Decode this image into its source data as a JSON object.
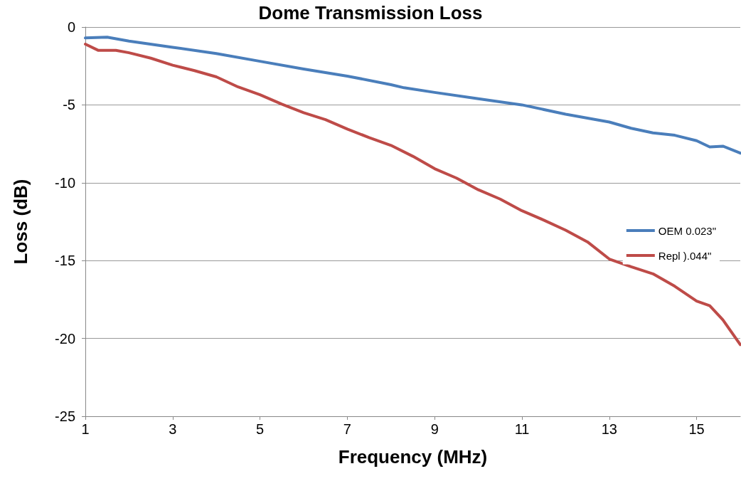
{
  "chart_data": {
    "type": "line",
    "title": "Dome Transmission Loss",
    "xlabel": "Frequency (MHz)",
    "ylabel": "Loss (dB)",
    "xlim": [
      1,
      16
    ],
    "xticks": [
      1,
      3,
      5,
      7,
      9,
      11,
      13,
      15
    ],
    "ylim": [
      -25,
      0
    ],
    "yticks": [
      -25,
      -20,
      -15,
      -10,
      -5,
      0
    ],
    "grid": "y",
    "legend": "right",
    "marker": "none",
    "line_style": "solid",
    "series": [
      {
        "name": "OEM 0.023\"",
        "color": "#4a7ebb",
        "x": [
          1,
          1.5,
          2,
          3,
          4,
          5,
          6,
          7,
          8,
          8.3,
          9,
          10,
          11,
          12,
          13,
          13.5,
          14,
          14.5,
          15,
          15.3,
          15.6,
          16
        ],
        "values": [
          -0.7,
          -0.65,
          -0.9,
          -1.3,
          -1.7,
          -2.2,
          -2.7,
          -3.15,
          -3.7,
          -3.9,
          -4.2,
          -4.6,
          -5.0,
          -5.6,
          -6.1,
          -6.5,
          -6.8,
          -6.95,
          -7.3,
          -7.7,
          -7.65,
          -8.1
        ]
      },
      {
        "name": "Repl ).044\"",
        "color": "#be4b48",
        "x": [
          1,
          1.3,
          1.7,
          2,
          2.5,
          3,
          3.5,
          4,
          4.5,
          5,
          5.5,
          6,
          6.5,
          7,
          7.5,
          8,
          8.5,
          9,
          9.5,
          10,
          10.5,
          11,
          11.5,
          12,
          12.5,
          13,
          13.5,
          14,
          14.5,
          15,
          15.3,
          15.6,
          16
        ],
        "values": [
          -1.1,
          -1.5,
          -1.5,
          -1.65,
          -2.0,
          -2.45,
          -2.8,
          -3.2,
          -3.85,
          -4.35,
          -4.95,
          -5.5,
          -5.95,
          -6.55,
          -7.1,
          -7.6,
          -8.3,
          -9.1,
          -9.7,
          -10.45,
          -11.05,
          -11.8,
          -12.4,
          -13.05,
          -13.8,
          -14.9,
          -15.4,
          -15.85,
          -16.65,
          -17.6,
          -17.9,
          -18.8,
          -20.4
        ]
      }
    ]
  }
}
